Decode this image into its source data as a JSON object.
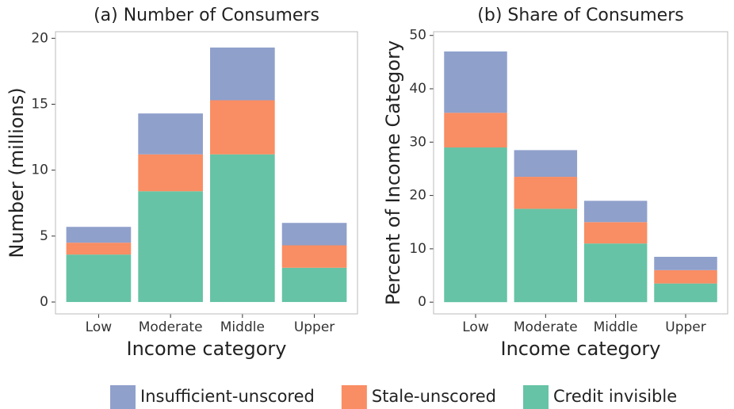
{
  "chart_data": [
    {
      "type": "bar",
      "stacked": true,
      "title": "(a) Number of Consumers",
      "x_label": "Income category",
      "y_label": "Number (millions)",
      "categories": [
        "Low",
        "Moderate",
        "Middle",
        "Upper"
      ],
      "series": [
        {
          "name": "Insufficient-unscored",
          "color": "#8fa0cb",
          "values": [
            1.2,
            3.1,
            4.0,
            1.7
          ]
        },
        {
          "name": "Stale-unscored",
          "color": "#f98d63",
          "values": [
            0.9,
            2.8,
            4.1,
            1.7
          ]
        },
        {
          "name": "Credit invisible",
          "color": "#66c3a5",
          "values": [
            3.6,
            8.4,
            11.2,
            2.6
          ]
        }
      ],
      "ylim": [
        -0.9,
        20.5
      ],
      "yticks": [
        0,
        5,
        10,
        15,
        20
      ]
    },
    {
      "type": "bar",
      "stacked": true,
      "title": "(b) Share of Consumers",
      "x_label": "Income category",
      "y_label": "Percent of Income Category",
      "categories": [
        "Low",
        "Moderate",
        "Middle",
        "Upper"
      ],
      "series": [
        {
          "values": [
            11.5,
            5,
            4,
            2.5
          ]
        },
        {
          "values": [
            6.5,
            6,
            4,
            2.5
          ]
        },
        {
          "values": [
            29,
            17.5,
            11,
            3.5
          ]
        }
      ],
      "ylim": [
        -2.2,
        50.7
      ],
      "yticks": [
        0,
        10,
        20,
        30,
        40,
        50
      ]
    }
  ]
}
